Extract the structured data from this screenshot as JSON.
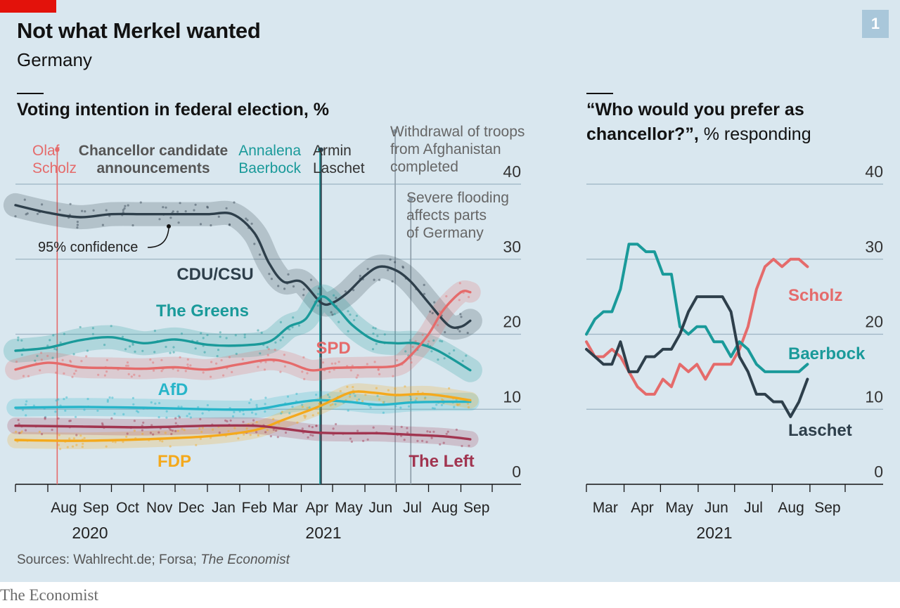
{
  "header": {
    "title": "Not what Merkel wanted",
    "subtitle": "Germany",
    "badge": "1"
  },
  "left_chart": {
    "title": "Voting intention in federal election, %"
  },
  "right_chart": {
    "title_line1": "“Who would you prefer as",
    "title_line2_bold": "chancellor?”,",
    "title_line2_unit": " % responding"
  },
  "annotations": {
    "olaf": [
      "Olaf",
      "Scholz"
    ],
    "candidate": [
      "Chancellor candidate",
      "announcements"
    ],
    "baerbock": [
      "Annalena",
      "Baerbock"
    ],
    "laschet": [
      "Armin",
      "Laschet"
    ],
    "afghan": [
      "Withdrawal of troops",
      "from Afghanistan",
      "completed"
    ],
    "flood": [
      "Severe flooding",
      "affects parts",
      "of Germany"
    ],
    "confidence": "95% confidence"
  },
  "source": "Sources: Wahlrecht.de; Forsa;",
  "source_italic": "The Economist",
  "footer": "The Economist",
  "colors": {
    "background": "#d9e7ef",
    "cdu": "#2e3f4b",
    "greens": "#1a9a9a",
    "spd": "#e56b6b",
    "afd": "#27b5c9",
    "fdp": "#f4a91c",
    "left": "#a13550",
    "grid": "#9db4c2"
  },
  "chart_data": [
    {
      "type": "line",
      "title": "Voting intention in federal election, %",
      "ylim": [
        0,
        40
      ],
      "yticks": [
        0,
        10,
        20,
        30,
        40
      ],
      "x_tick_labels": [
        "Aug",
        "Sep",
        "Oct",
        "Nov",
        "Dec",
        "Jan",
        "Feb",
        "Mar",
        "Apr",
        "May",
        "Jun",
        "Jul",
        "Aug",
        "Sep"
      ],
      "year_labels": [
        "2020",
        "2021"
      ],
      "x_range": [
        "2020-07",
        "2021-10"
      ],
      "series": [
        {
          "name": "CDU/CSU",
          "label": "CDU/CSU",
          "color": "#2e3f4b",
          "points": [
            [
              "2020-07-01",
              37.2
            ],
            [
              "2020-08-01",
              36.2
            ],
            [
              "2020-09-01",
              35.6
            ],
            [
              "2020-10-01",
              36.0
            ],
            [
              "2020-11-01",
              36.0
            ],
            [
              "2020-12-01",
              36.0
            ],
            [
              "2021-01-01",
              36.0
            ],
            [
              "2021-01-25",
              36.0
            ],
            [
              "2021-02-15",
              33.5
            ],
            [
              "2021-03-01",
              29.5
            ],
            [
              "2021-03-15",
              27.0
            ],
            [
              "2021-04-01",
              27.0
            ],
            [
              "2021-04-20",
              24.2
            ],
            [
              "2021-05-01",
              24.2
            ],
            [
              "2021-05-15",
              25.5
            ],
            [
              "2021-06-01",
              27.8
            ],
            [
              "2021-06-15",
              29.0
            ],
            [
              "2021-07-01",
              28.5
            ],
            [
              "2021-07-15",
              27.0
            ],
            [
              "2021-08-01",
              24.2
            ],
            [
              "2021-08-20",
              21.2
            ],
            [
              "2021-09-01",
              21.0
            ],
            [
              "2021-09-10",
              21.8
            ]
          ]
        },
        {
          "name": "The Greens",
          "label": "The Greens",
          "color": "#1a9a9a",
          "points": [
            [
              "2020-07-01",
              17.8
            ],
            [
              "2020-08-01",
              18.2
            ],
            [
              "2020-09-01",
              19.2
            ],
            [
              "2020-10-01",
              19.6
            ],
            [
              "2020-11-01",
              18.8
            ],
            [
              "2020-12-01",
              19.3
            ],
            [
              "2021-01-01",
              18.6
            ],
            [
              "2021-02-01",
              18.5
            ],
            [
              "2021-03-01",
              19.0
            ],
            [
              "2021-03-20",
              21.0
            ],
            [
              "2021-04-05",
              22.0
            ],
            [
              "2021-04-20",
              25.0
            ],
            [
              "2021-05-05",
              23.5
            ],
            [
              "2021-05-20",
              21.2
            ],
            [
              "2021-06-10",
              19.2
            ],
            [
              "2021-07-01",
              18.8
            ],
            [
              "2021-07-20",
              18.8
            ],
            [
              "2021-08-10",
              17.8
            ],
            [
              "2021-09-10",
              15.2
            ]
          ]
        },
        {
          "name": "SPD",
          "label": "SPD",
          "color": "#e56b6b",
          "points": [
            [
              "2020-07-01",
              15.3
            ],
            [
              "2020-08-01",
              16.2
            ],
            [
              "2020-09-01",
              15.6
            ],
            [
              "2020-10-01",
              15.5
            ],
            [
              "2020-11-01",
              15.4
            ],
            [
              "2020-12-01",
              15.6
            ],
            [
              "2021-01-01",
              15.3
            ],
            [
              "2021-02-01",
              16.0
            ],
            [
              "2021-03-01",
              16.6
            ],
            [
              "2021-03-20",
              16.2
            ],
            [
              "2021-04-10",
              15.2
            ],
            [
              "2021-05-01",
              15.5
            ],
            [
              "2021-06-01",
              15.6
            ],
            [
              "2021-07-01",
              15.8
            ],
            [
              "2021-07-15",
              17.2
            ],
            [
              "2021-08-01",
              20.0
            ],
            [
              "2021-08-15",
              23.2
            ],
            [
              "2021-09-01",
              25.6
            ],
            [
              "2021-09-10",
              25.6
            ]
          ]
        },
        {
          "name": "AfD",
          "label": "AfD",
          "color": "#27b5c9",
          "points": [
            [
              "2020-07-01",
              10.2
            ],
            [
              "2020-09-01",
              10.3
            ],
            [
              "2020-11-01",
              10.2
            ],
            [
              "2021-01-01",
              10.0
            ],
            [
              "2021-02-15",
              10.0
            ],
            [
              "2021-03-15",
              10.6
            ],
            [
              "2021-04-15",
              11.2
            ],
            [
              "2021-05-15",
              11.0
            ],
            [
              "2021-06-15",
              10.6
            ],
            [
              "2021-07-15",
              10.9
            ],
            [
              "2021-08-15",
              11.0
            ],
            [
              "2021-09-10",
              11.0
            ]
          ]
        },
        {
          "name": "FDP",
          "label": "FDP",
          "color": "#f4a91c",
          "points": [
            [
              "2020-07-01",
              5.9
            ],
            [
              "2020-09-01",
              5.8
            ],
            [
              "2020-11-01",
              6.0
            ],
            [
              "2021-01-01",
              6.4
            ],
            [
              "2021-02-15",
              7.2
            ],
            [
              "2021-03-15",
              8.6
            ],
            [
              "2021-04-15",
              10.2
            ],
            [
              "2021-05-01",
              11.2
            ],
            [
              "2021-05-20",
              12.3
            ],
            [
              "2021-06-10",
              12.2
            ],
            [
              "2021-07-01",
              11.9
            ],
            [
              "2021-08-01",
              12.0
            ],
            [
              "2021-09-10",
              11.2
            ]
          ]
        },
        {
          "name": "The Left",
          "label": "The Left",
          "color": "#a13550",
          "points": [
            [
              "2020-07-01",
              7.8
            ],
            [
              "2020-09-01",
              7.7
            ],
            [
              "2020-11-01",
              7.6
            ],
            [
              "2021-01-01",
              7.8
            ],
            [
              "2021-02-15",
              7.8
            ],
            [
              "2021-03-15",
              7.4
            ],
            [
              "2021-04-15",
              6.9
            ],
            [
              "2021-05-15",
              6.8
            ],
            [
              "2021-06-15",
              6.8
            ],
            [
              "2021-07-15",
              6.6
            ],
            [
              "2021-08-15",
              6.4
            ],
            [
              "2021-09-10",
              6.0
            ]
          ]
        }
      ]
    },
    {
      "type": "line",
      "title": "“Who would you prefer as chancellor?”, % responding",
      "ylim": [
        0,
        40
      ],
      "yticks": [
        0,
        10,
        20,
        30,
        40
      ],
      "x_tick_labels": [
        "Mar",
        "Apr",
        "May",
        "Jun",
        "Jul",
        "Aug",
        "Sep"
      ],
      "year_labels": [
        "2021"
      ],
      "x_range": [
        "2021-03-01",
        "2021-09-30"
      ],
      "series": [
        {
          "name": "Scholz",
          "label": "Scholz",
          "color": "#e56b6b",
          "points": [
            [
              "2021-03-01",
              19
            ],
            [
              "2021-03-08",
              17
            ],
            [
              "2021-03-15",
              17
            ],
            [
              "2021-03-22",
              18
            ],
            [
              "2021-03-29",
              17
            ],
            [
              "2021-04-05",
              15
            ],
            [
              "2021-04-12",
              13
            ],
            [
              "2021-04-19",
              12
            ],
            [
              "2021-04-26",
              12
            ],
            [
              "2021-05-03",
              14
            ],
            [
              "2021-05-10",
              13
            ],
            [
              "2021-05-17",
              16
            ],
            [
              "2021-05-24",
              15
            ],
            [
              "2021-05-31",
              16
            ],
            [
              "2021-06-07",
              14
            ],
            [
              "2021-06-14",
              16
            ],
            [
              "2021-06-21",
              16
            ],
            [
              "2021-06-28",
              16
            ],
            [
              "2021-07-05",
              18
            ],
            [
              "2021-07-12",
              21
            ],
            [
              "2021-07-19",
              26
            ],
            [
              "2021-07-26",
              29
            ],
            [
              "2021-08-02",
              30
            ],
            [
              "2021-08-09",
              29
            ],
            [
              "2021-08-16",
              30
            ],
            [
              "2021-08-23",
              30
            ],
            [
              "2021-08-30",
              29
            ]
          ]
        },
        {
          "name": "Baerbock",
          "label": "Baerbock",
          "color": "#1a9a9a",
          "points": [
            [
              "2021-03-01",
              20
            ],
            [
              "2021-03-08",
              22
            ],
            [
              "2021-03-15",
              23
            ],
            [
              "2021-03-22",
              23
            ],
            [
              "2021-03-29",
              26
            ],
            [
              "2021-04-05",
              32
            ],
            [
              "2021-04-12",
              32
            ],
            [
              "2021-04-19",
              31
            ],
            [
              "2021-04-26",
              31
            ],
            [
              "2021-05-03",
              28
            ],
            [
              "2021-05-10",
              28
            ],
            [
              "2021-05-17",
              21
            ],
            [
              "2021-05-24",
              20
            ],
            [
              "2021-05-31",
              21
            ],
            [
              "2021-06-07",
              21
            ],
            [
              "2021-06-14",
              19
            ],
            [
              "2021-06-21",
              19
            ],
            [
              "2021-06-28",
              17
            ],
            [
              "2021-07-05",
              19
            ],
            [
              "2021-07-12",
              18
            ],
            [
              "2021-07-19",
              16
            ],
            [
              "2021-07-26",
              15
            ],
            [
              "2021-08-02",
              15
            ],
            [
              "2021-08-09",
              15
            ],
            [
              "2021-08-16",
              15
            ],
            [
              "2021-08-23",
              15
            ],
            [
              "2021-08-30",
              16
            ]
          ]
        },
        {
          "name": "Laschet",
          "label": "Laschet",
          "color": "#2e3f4b",
          "points": [
            [
              "2021-03-01",
              18
            ],
            [
              "2021-03-08",
              17
            ],
            [
              "2021-03-15",
              16
            ],
            [
              "2021-03-22",
              16
            ],
            [
              "2021-03-29",
              19
            ],
            [
              "2021-04-05",
              15
            ],
            [
              "2021-04-12",
              15
            ],
            [
              "2021-04-19",
              17
            ],
            [
              "2021-04-26",
              17
            ],
            [
              "2021-05-03",
              18
            ],
            [
              "2021-05-10",
              18
            ],
            [
              "2021-05-17",
              20
            ],
            [
              "2021-05-24",
              23
            ],
            [
              "2021-05-31",
              25
            ],
            [
              "2021-06-07",
              25
            ],
            [
              "2021-06-14",
              25
            ],
            [
              "2021-06-21",
              25
            ],
            [
              "2021-06-28",
              23
            ],
            [
              "2021-07-05",
              17
            ],
            [
              "2021-07-12",
              15
            ],
            [
              "2021-07-19",
              12
            ],
            [
              "2021-07-26",
              12
            ],
            [
              "2021-08-02",
              11
            ],
            [
              "2021-08-09",
              11
            ],
            [
              "2021-08-16",
              9
            ],
            [
              "2021-08-23",
              11
            ],
            [
              "2021-08-30",
              14
            ]
          ]
        }
      ]
    }
  ]
}
